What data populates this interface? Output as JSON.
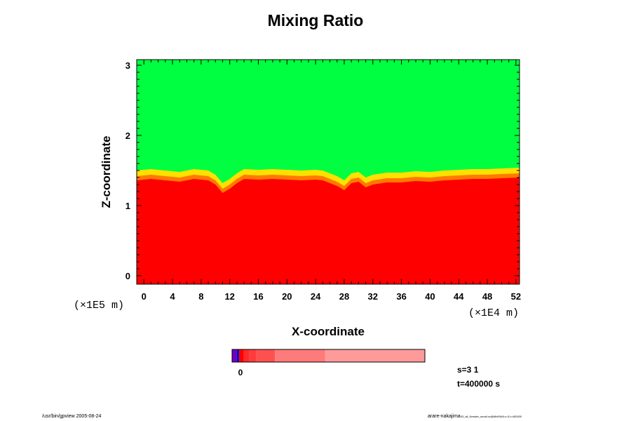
{
  "chart_data": {
    "type": "heatmap",
    "title": "Mixing Ratio",
    "xlabel": "X-coordinate",
    "ylabel": "Z-coordinate",
    "x_ticks": [
      "0",
      "4",
      "8",
      "12",
      "16",
      "20",
      "24",
      "28",
      "32",
      "36",
      "40",
      "44",
      "48",
      "52"
    ],
    "y_ticks": [
      "0",
      "1",
      "2",
      "3"
    ],
    "x_unit": "(×1E4 m)",
    "y_unit": "(×1E5 m)",
    "xlim": [
      -1,
      52.5
    ],
    "ylim": [
      -0.12,
      3.08
    ],
    "regions": [
      {
        "name": "upper",
        "color": "#00ff40",
        "z_range": [
          1.45,
          3.08
        ]
      },
      {
        "name": "lower",
        "color": "#ff0000",
        "z_range": [
          -0.12,
          1.45
        ]
      }
    ],
    "interface_z": [
      [
        -1,
        1.5
      ],
      [
        1,
        1.52
      ],
      [
        3,
        1.5
      ],
      [
        5,
        1.48
      ],
      [
        7,
        1.52
      ],
      [
        9,
        1.5
      ],
      [
        10,
        1.44
      ],
      [
        11,
        1.32
      ],
      [
        12,
        1.38
      ],
      [
        13,
        1.46
      ],
      [
        14,
        1.52
      ],
      [
        16,
        1.51
      ],
      [
        18,
        1.52
      ],
      [
        20,
        1.51
      ],
      [
        22,
        1.5
      ],
      [
        24,
        1.51
      ],
      [
        25,
        1.5
      ],
      [
        27,
        1.42
      ],
      [
        28,
        1.36
      ],
      [
        29,
        1.46
      ],
      [
        30,
        1.48
      ],
      [
        31,
        1.4
      ],
      [
        32,
        1.44
      ],
      [
        34,
        1.47
      ],
      [
        36,
        1.47
      ],
      [
        38,
        1.49
      ],
      [
        40,
        1.48
      ],
      [
        42,
        1.5
      ],
      [
        44,
        1.51
      ],
      [
        46,
        1.52
      ],
      [
        48,
        1.52
      ],
      [
        50,
        1.53
      ],
      [
        52.5,
        1.54
      ]
    ],
    "colorbar": {
      "label": "0",
      "segments": [
        {
          "color": "#7000c0",
          "weight": 0.8
        },
        {
          "color": "#0000d0",
          "weight": 0.4
        },
        {
          "color": "#ff0000",
          "weight": 0.8
        },
        {
          "color": "#ff2a2a",
          "weight": 1.0
        },
        {
          "color": "#ff3c3c",
          "weight": 1.2
        },
        {
          "color": "#ff5050",
          "weight": 3.2
        },
        {
          "color": "#ff7a7a",
          "weight": 8.6
        },
        {
          "color": "#ff9a9a",
          "weight": 17.2
        }
      ]
    }
  },
  "meta": {
    "step": "s=3 1",
    "time": "t=400000 s"
  },
  "footer": {
    "left": "/usr/bin/gpview 2005-08-24",
    "right_main": "arare-nakajima",
    "right_small": "03_all_Kessler_small.nc@MixRtAll,x=3,t=400000"
  }
}
